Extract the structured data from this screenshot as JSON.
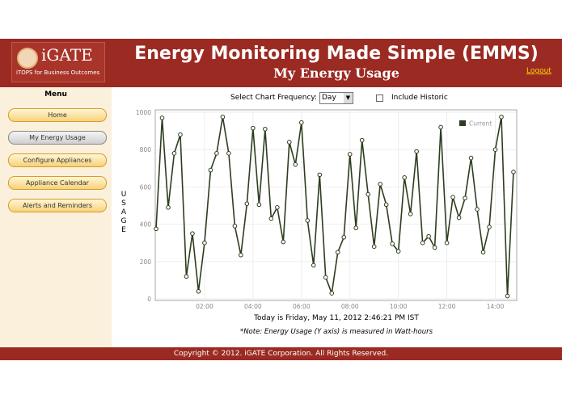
{
  "header": {
    "logo": "iGATE",
    "tagline": "iTOPS for Business Outcomes",
    "title": "Energy Monitoring Made Simple (EMMS)",
    "subtitle": "My Energy Usage",
    "logout": "Logout"
  },
  "menu": {
    "title": "Menu",
    "items": [
      "Home",
      "My Energy Usage",
      "Configure Appliances",
      "Appliance Calendar",
      "Alerts and Reminders"
    ]
  },
  "controls": {
    "frequency_label": "Select Chart Frequency:",
    "frequency": "Day",
    "historic_label": "Include Historic"
  },
  "chart_data": {
    "type": "line",
    "y_label": "USAGE",
    "x": [
      0,
      0.25,
      0.5,
      0.75,
      1,
      1.25,
      1.5,
      1.75,
      2,
      2.25,
      2.5,
      2.75,
      3,
      3.25,
      3.5,
      3.75,
      4,
      4.25,
      4.5,
      4.75,
      5,
      5.25,
      5.5,
      5.75,
      6,
      6.25,
      6.5,
      6.75,
      7,
      7.25,
      7.5,
      7.75,
      8,
      8.25,
      8.5,
      8.75,
      9,
      9.25,
      9.5,
      9.75,
      10,
      10.25,
      10.5,
      10.75,
      11,
      11.25,
      11.5,
      11.75,
      12,
      12.25,
      12.5,
      12.75,
      13,
      13.25,
      13.5,
      13.75,
      14,
      14.25,
      14.5,
      14.75
    ],
    "series": [
      {
        "name": "Current",
        "color": "#2d3d1f",
        "values": [
          375,
          970,
          490,
          780,
          880,
          120,
          350,
          40,
          300,
          690,
          780,
          975,
          780,
          390,
          235,
          510,
          915,
          505,
          910,
          430,
          490,
          305,
          840,
          720,
          945,
          420,
          180,
          665,
          115,
          30,
          250,
          330,
          775,
          380,
          850,
          560,
          280,
          615,
          505,
          295,
          255,
          650,
          455,
          790,
          300,
          335,
          275,
          920,
          300,
          545,
          435,
          540,
          755,
          480,
          250,
          385,
          800,
          975,
          15,
          680
        ]
      }
    ],
    "xlim": [
      0,
      14.85
    ],
    "ylim": [
      0,
      1000
    ],
    "xticks": [
      {
        "value": 2,
        "label": "02:00"
      },
      {
        "value": 4,
        "label": "04:00"
      },
      {
        "value": 6,
        "label": "06:00"
      },
      {
        "value": 8,
        "label": "08:00"
      },
      {
        "value": 10,
        "label": "10:00"
      },
      {
        "value": 12,
        "label": "12:00"
      },
      {
        "value": 14,
        "label": "14:00"
      }
    ],
    "yticks": [
      0,
      200,
      400,
      600,
      800,
      1000
    ],
    "grid": true,
    "legend": "top-right"
  },
  "status": "Today is Friday, May 11, 2012 2:46:21 PM IST",
  "note": "*Note: Energy Usage (Y axis) is measured in Watt-hours",
  "footer": "Copyright © 2012. iGATE Corporation. All Rights Reserved."
}
